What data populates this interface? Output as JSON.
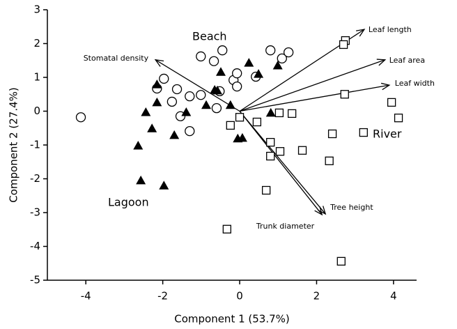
{
  "chart_data": {
    "type": "scatter",
    "xlabel": "Component 1 (53.7%)",
    "ylabel": "Component 2 (27.4%)",
    "xlim": [
      -5,
      4.6
    ],
    "ylim": [
      -5,
      3
    ],
    "xticks": [
      -4,
      -2,
      0,
      2,
      4
    ],
    "yticks": [
      3,
      2,
      1,
      0,
      -1,
      -2,
      -3,
      -4,
      -5
    ],
    "series": [
      {
        "name": "Beach",
        "marker": "circle",
        "color": "#000000",
        "x": [
          -4.13,
          -1.97,
          -2.15,
          -1.63,
          -1.76,
          -1.54,
          -1.3,
          -1.3,
          -1.01,
          -1.01,
          -0.67,
          -0.45,
          -0.6,
          -0.52,
          -0.16,
          -0.07,
          -0.07,
          0.42,
          0.8,
          1.1,
          1.27
        ],
        "y": [
          -0.18,
          0.96,
          0.67,
          0.65,
          0.28,
          -0.15,
          -0.59,
          0.44,
          0.48,
          1.62,
          1.48,
          1.8,
          0.09,
          0.59,
          0.92,
          1.12,
          0.73,
          1.02,
          1.8,
          1.56,
          1.74
        ]
      },
      {
        "name": "Lagoon",
        "marker": "triangle",
        "color": "#000000",
        "x": [
          -2.15,
          -2.15,
          -2.44,
          -2.28,
          -2.64,
          -2.57,
          -1.97,
          -1.7,
          -1.39,
          -0.87,
          -0.65,
          -0.58,
          -0.49,
          -0.24,
          -0.05,
          0.07,
          0.24,
          0.49,
          0.99,
          0.81
        ],
        "y": [
          0.79,
          0.26,
          -0.03,
          -0.51,
          -1.02,
          -2.05,
          -2.2,
          -0.71,
          -0.03,
          0.18,
          0.63,
          0.61,
          1.16,
          0.18,
          -0.81,
          -0.79,
          1.43,
          1.1,
          1.35,
          -0.05
        ]
      },
      {
        "name": "River",
        "marker": "square",
        "color": "#000000",
        "x": [
          2.75,
          2.7,
          2.73,
          3.95,
          4.13,
          3.22,
          2.41,
          1.36,
          1.03,
          0.45,
          0.0,
          -0.24,
          0.8,
          1.05,
          1.63,
          0.8,
          2.33,
          0.69,
          -0.33,
          2.64
        ],
        "y": [
          2.09,
          1.97,
          0.5,
          0.26,
          -0.2,
          -0.63,
          -0.67,
          -0.07,
          -0.05,
          -0.32,
          -0.18,
          -0.42,
          -0.92,
          -1.19,
          -1.16,
          -1.33,
          -1.47,
          -2.34,
          -3.49,
          -4.44
        ]
      }
    ],
    "loadings": [
      {
        "label": "Leaf length",
        "x": 3.24,
        "y": 2.42
      },
      {
        "label": "Leaf area",
        "x": 3.78,
        "y": 1.52
      },
      {
        "label": "Leaf width",
        "x": 3.89,
        "y": 0.77
      },
      {
        "label": "Stomatal density",
        "x": -2.19,
        "y": 1.52
      },
      {
        "label": "Tree height",
        "x": 2.23,
        "y": -3.04
      },
      {
        "label": "Trunk diameter",
        "x": 2.14,
        "y": -3.06
      }
    ]
  }
}
